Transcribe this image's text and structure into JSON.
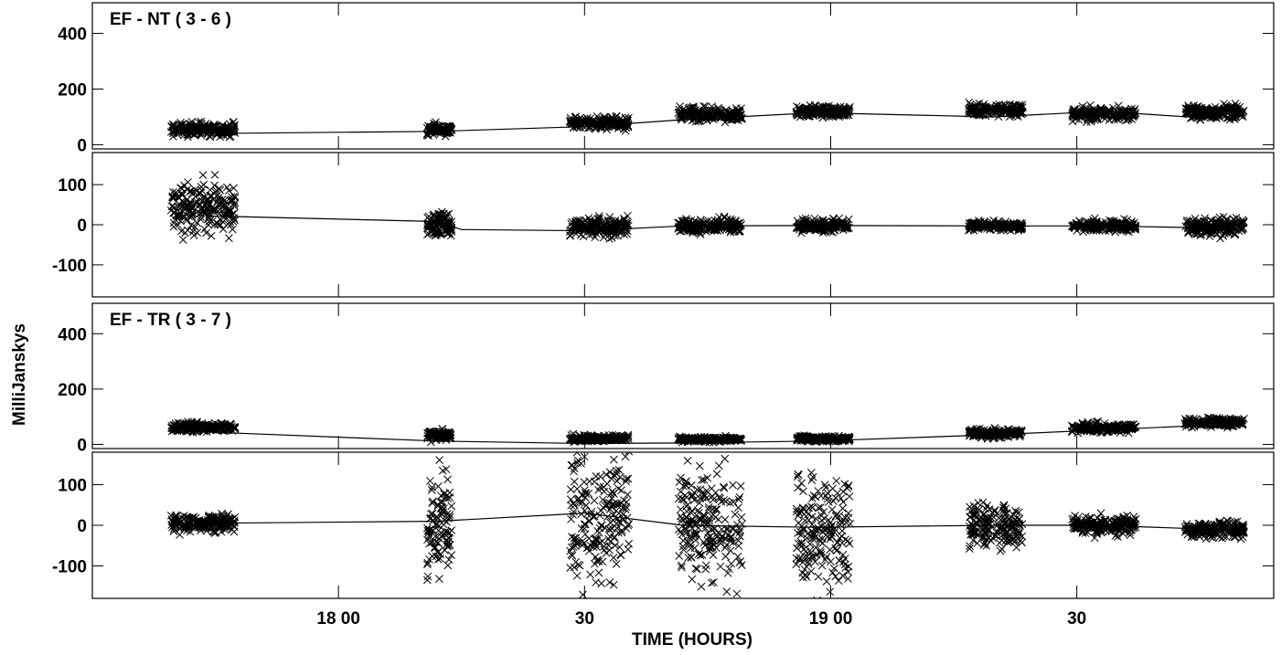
{
  "ylabel": "MilliJanskys",
  "xlabel": "TIME (HOURS)",
  "x_ticks": [
    {
      "t": 18.0,
      "label": "18 00"
    },
    {
      "t": 18.5,
      "label": "30"
    },
    {
      "t": 19.0,
      "label": "19 00"
    },
    {
      "t": 19.5,
      "label": "30"
    }
  ],
  "colors": {
    "axis": "#000000",
    "marker": "#000000",
    "background": "#ffffff"
  },
  "chart_data": [
    {
      "type": "scatter",
      "title": "EF - NT ( 3 - 6 )",
      "ylabel": "MilliJanskys",
      "xlabel": "TIME (HOURS)",
      "panels": [
        {
          "quantity": "amplitude",
          "ylim": [
            -15,
            510
          ],
          "yticks": [
            0,
            200,
            400
          ],
          "line": {
            "x": [
              17.73,
              18.2,
              18.5,
              18.7,
              18.97,
              19.33,
              19.55,
              19.77
            ],
            "y": [
              40,
              48,
              65,
              90,
              115,
              100,
              120,
              95
            ]
          },
          "scans": [
            {
              "t0": 17.66,
              "t1": 17.79,
              "mean": 55,
              "spread": 22
            },
            {
              "t0": 18.18,
              "t1": 18.23,
              "mean": 55,
              "spread": 18
            },
            {
              "t0": 18.47,
              "t1": 18.59,
              "mean": 78,
              "spread": 20
            },
            {
              "t0": 18.69,
              "t1": 18.82,
              "mean": 108,
              "spread": 22
            },
            {
              "t0": 18.93,
              "t1": 19.04,
              "mean": 120,
              "spread": 18
            },
            {
              "t0": 19.28,
              "t1": 19.39,
              "mean": 125,
              "spread": 22
            },
            {
              "t0": 19.49,
              "t1": 19.62,
              "mean": 110,
              "spread": 20
            },
            {
              "t0": 19.72,
              "t1": 19.84,
              "mean": 118,
              "spread": 22
            }
          ]
        },
        {
          "quantity": "phase",
          "ylim": [
            -180,
            180
          ],
          "yticks": [
            -100,
            0,
            100
          ],
          "line": {
            "x": [
              17.73,
              18.2,
              18.25,
              18.5,
              18.7,
              18.97,
              19.33,
              19.55,
              19.77
            ],
            "y": [
              22,
              8,
              -12,
              -15,
              -3,
              -2,
              -3,
              -3,
              -8
            ]
          },
          "scans": [
            {
              "t0": 17.66,
              "t1": 17.79,
              "mean": 40,
              "spread": 55
            },
            {
              "t0": 18.18,
              "t1": 18.23,
              "mean": 0,
              "spread": 30
            },
            {
              "t0": 18.47,
              "t1": 18.59,
              "mean": -5,
              "spread": 22
            },
            {
              "t0": 18.69,
              "t1": 18.82,
              "mean": -3,
              "spread": 15
            },
            {
              "t0": 18.93,
              "t1": 19.04,
              "mean": -2,
              "spread": 15
            },
            {
              "t0": 19.28,
              "t1": 19.39,
              "mean": -3,
              "spread": 10
            },
            {
              "t0": 19.49,
              "t1": 19.62,
              "mean": -3,
              "spread": 12
            },
            {
              "t0": 19.72,
              "t1": 19.84,
              "mean": -5,
              "spread": 20
            }
          ]
        }
      ]
    },
    {
      "type": "scatter",
      "title": "EF - TR ( 3 - 7 )",
      "ylabel": "MilliJanskys",
      "xlabel": "TIME (HOURS)",
      "panels": [
        {
          "quantity": "amplitude",
          "ylim": [
            -15,
            510
          ],
          "yticks": [
            0,
            200,
            400
          ],
          "line": {
            "x": [
              17.73,
              18.2,
              18.5,
              18.7,
              18.97,
              19.33,
              19.55,
              19.77
            ],
            "y": [
              45,
              12,
              3,
              5,
              12,
              35,
              52,
              70
            ]
          },
          "scans": [
            {
              "t0": 17.66,
              "t1": 17.79,
              "mean": 62,
              "spread": 15
            },
            {
              "t0": 18.18,
              "t1": 18.23,
              "mean": 35,
              "spread": 18
            },
            {
              "t0": 18.47,
              "t1": 18.59,
              "mean": 22,
              "spread": 10
            },
            {
              "t0": 18.69,
              "t1": 18.82,
              "mean": 18,
              "spread": 8
            },
            {
              "t0": 18.93,
              "t1": 19.04,
              "mean": 20,
              "spread": 10
            },
            {
              "t0": 19.28,
              "t1": 19.39,
              "mean": 40,
              "spread": 15
            },
            {
              "t0": 19.49,
              "t1": 19.62,
              "mean": 60,
              "spread": 15
            },
            {
              "t0": 19.72,
              "t1": 19.84,
              "mean": 80,
              "spread": 15
            }
          ]
        },
        {
          "quantity": "phase",
          "ylim": [
            -180,
            180
          ],
          "yticks": [
            -100,
            0,
            100
          ],
          "line": {
            "x": [
              17.73,
              18.2,
              18.5,
              18.7,
              18.97,
              19.33,
              19.55,
              19.77
            ],
            "y": [
              5,
              10,
              30,
              0,
              -5,
              0,
              0,
              -10
            ]
          },
          "scans": [
            {
              "t0": 17.66,
              "t1": 17.79,
              "mean": 5,
              "spread": 20
            },
            {
              "t0": 18.18,
              "t1": 18.23,
              "mean": 0,
              "spread": 110
            },
            {
              "t0": 18.47,
              "t1": 18.59,
              "mean": 20,
              "spread": 140
            },
            {
              "t0": 18.69,
              "t1": 18.82,
              "mean": 0,
              "spread": 130
            },
            {
              "t0": 18.93,
              "t1": 19.04,
              "mean": -10,
              "spread": 130
            },
            {
              "t0": 19.28,
              "t1": 19.39,
              "mean": 0,
              "spread": 45
            },
            {
              "t0": 19.49,
              "t1": 19.62,
              "mean": 0,
              "spread": 20
            },
            {
              "t0": 19.72,
              "t1": 19.84,
              "mean": -10,
              "spread": 20
            }
          ]
        }
      ]
    }
  ]
}
